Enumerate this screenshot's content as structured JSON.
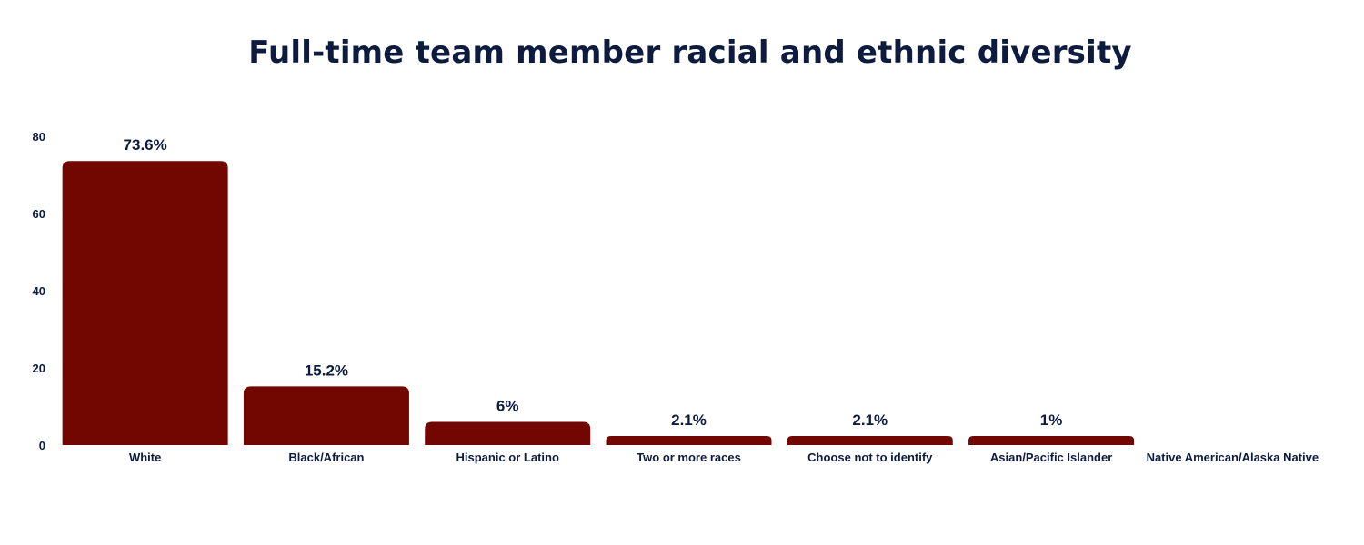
{
  "chart_data": {
    "type": "bar",
    "title": "Full-time team member racial and ethnic diversity",
    "categories": [
      "White",
      "Black/African",
      "Hispanic or Latino",
      "Two or more races",
      "Choose not to identify",
      "Asian/Pacific Islander",
      "Native American/Alaska Native"
    ],
    "values": [
      73.6,
      15.2,
      6,
      2.1,
      2.1,
      1,
      0
    ],
    "data_labels": [
      "73.6%",
      "15.2%",
      "6%",
      "2.1%",
      "2.1%",
      "1%",
      ""
    ],
    "xlabel": "",
    "ylabel": "",
    "ylim": [
      0,
      80
    ],
    "yticks": [
      0,
      20,
      40,
      60,
      80
    ],
    "grid": false,
    "legend": "none",
    "colors": {
      "bar": "#720600",
      "text": "#0d1b3e"
    }
  }
}
